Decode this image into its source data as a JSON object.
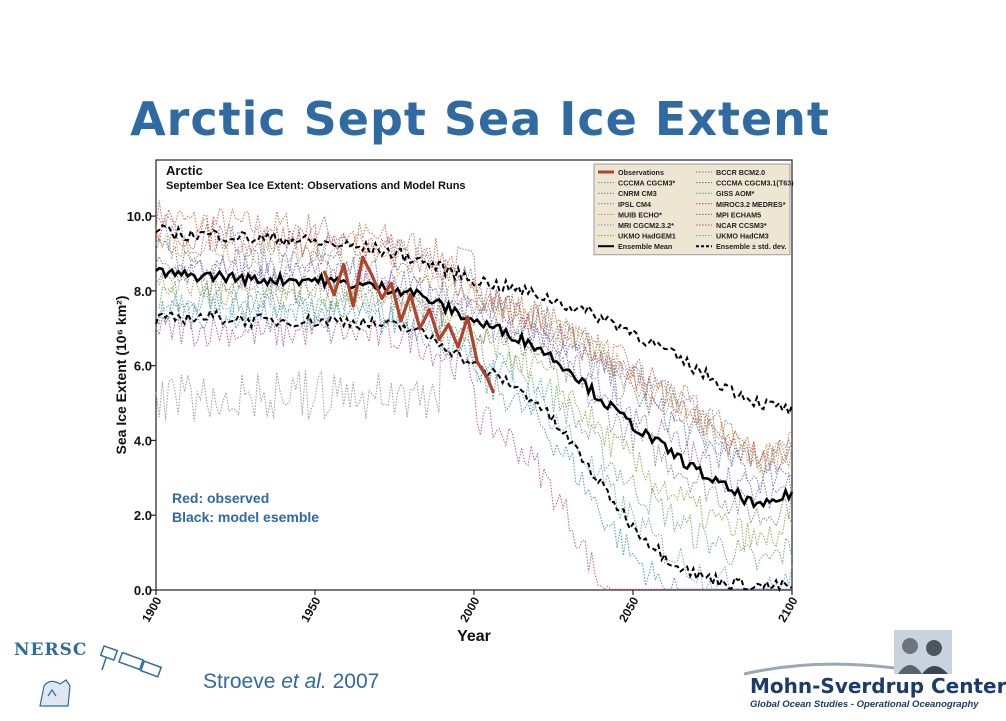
{
  "slide": {
    "title": "Arctic Sept Sea Ice Extent",
    "citation_author": "Stroeve",
    "citation_etal": "et al.",
    "citation_year": "2007"
  },
  "logos": {
    "left_text": "NERSC",
    "right_name": "Mohn-Sverdrup Center",
    "right_subtitle": "Global Ocean Studies - Operational Oceanography"
  },
  "chart_data": {
    "type": "line",
    "title": "Arctic",
    "subtitle": "September Sea Ice Extent: Observations and Model Runs",
    "xlabel": "Year",
    "ylabel": "Sea Ice Extent (10⁶ km²)",
    "xlim": [
      1900,
      2100
    ],
    "ylim": [
      0,
      11.5
    ],
    "xticks": [
      "1900",
      "1950",
      "2000",
      "2050",
      "2100"
    ],
    "yticks": [
      "0.0",
      "2.0",
      "4.0",
      "6.0",
      "8.0",
      "10.0"
    ],
    "legend_position": "top-right",
    "annotations": [
      "Red: observed",
      "Black: model esemble"
    ],
    "legend": [
      {
        "label": "Observations",
        "color": "#b2422a",
        "style": "solid-thick"
      },
      {
        "label": "BCCR BCM2.0",
        "color": "#c7603c",
        "style": "dotted"
      },
      {
        "label": "CCCMA CGCM3*",
        "color": "#6c8a9a",
        "style": "dotted"
      },
      {
        "label": "CCCMA CGCM3.1(T63)",
        "color": "#4d6fb0",
        "style": "dotted"
      },
      {
        "label": "CNRM CM3",
        "color": "#7a7a7a",
        "style": "dotted"
      },
      {
        "label": "GISS AOM*",
        "color": "#5aa070",
        "style": "dotted"
      },
      {
        "label": "IPSL CM4",
        "color": "#3d8fb0",
        "style": "dotted"
      },
      {
        "label": "MIROC3.2 MEDRES*",
        "color": "#b04a8a",
        "style": "dotted"
      },
      {
        "label": "MUIB ECHO*",
        "color": "#d99030",
        "style": "dotted"
      },
      {
        "label": "MPI ECHAM5",
        "color": "#8a5ab8",
        "style": "dotted"
      },
      {
        "label": "MRI CGCM2.3.2*",
        "color": "#60a0c0",
        "style": "dotted"
      },
      {
        "label": "NCAR CCSM3*",
        "color": "#c05050",
        "style": "dotted"
      },
      {
        "label": "UKMO HadGEM1",
        "color": "#8aa040",
        "style": "dotted"
      },
      {
        "label": "UKMO HadCM3",
        "color": "#909090",
        "style": "dotted"
      },
      {
        "label": "Ensemble Mean",
        "color": "#000000",
        "style": "solid"
      },
      {
        "label": "Ensemble ± std. dev.",
        "color": "#000000",
        "style": "dashed"
      }
    ],
    "series": [
      {
        "name": "Observations",
        "x": [
          1953,
          1956,
          1959,
          1962,
          1965,
          1968,
          1971,
          1974,
          1977,
          1980,
          1983,
          1986,
          1989,
          1992,
          1995,
          1998,
          2001,
          2004,
          2006
        ],
        "y": [
          8.5,
          7.9,
          8.7,
          7.6,
          8.9,
          8.4,
          7.8,
          8.2,
          7.2,
          7.9,
          7.0,
          7.5,
          6.7,
          7.1,
          6.5,
          7.3,
          6.1,
          5.7,
          5.3
        ]
      },
      {
        "name": "Ensemble Mean",
        "x": [
          1900,
          1910,
          1920,
          1930,
          1940,
          1950,
          1960,
          1970,
          1980,
          1990,
          2000,
          2010,
          2020,
          2030,
          2040,
          2050,
          2060,
          2070,
          2080,
          2090,
          2100
        ],
        "y": [
          8.5,
          8.4,
          8.4,
          8.3,
          8.3,
          8.3,
          8.2,
          8.1,
          8.0,
          7.6,
          7.2,
          6.9,
          6.5,
          5.9,
          5.1,
          4.4,
          3.8,
          3.2,
          2.7,
          2.2,
          2.6
        ]
      },
      {
        "name": "Ensemble + std. dev.",
        "x": [
          1900,
          1910,
          1920,
          1930,
          1940,
          1950,
          1960,
          1970,
          1980,
          1990,
          2000,
          2010,
          2020,
          2030,
          2040,
          2050,
          2060,
          2070,
          2080,
          2090,
          2100
        ],
        "y": [
          9.6,
          9.5,
          9.5,
          9.4,
          9.4,
          9.3,
          9.2,
          9.1,
          8.9,
          8.6,
          8.3,
          8.1,
          7.9,
          7.6,
          7.3,
          6.9,
          6.4,
          5.9,
          5.4,
          5.0,
          4.8
        ]
      },
      {
        "name": "Ensemble - std. dev.",
        "x": [
          1900,
          1910,
          1920,
          1930,
          1940,
          1950,
          1960,
          1970,
          1980,
          1990,
          2000,
          2010,
          2020,
          2030,
          2040,
          2050,
          2060,
          2070,
          2080,
          2090,
          2100
        ],
        "y": [
          7.2,
          7.3,
          7.3,
          7.2,
          7.2,
          7.2,
          7.2,
          7.1,
          7.0,
          6.6,
          6.0,
          5.6,
          5.0,
          4.0,
          2.8,
          1.7,
          0.9,
          0.4,
          0.2,
          0.1,
          0.1
        ]
      }
    ],
    "model_runs_count": 13
  }
}
